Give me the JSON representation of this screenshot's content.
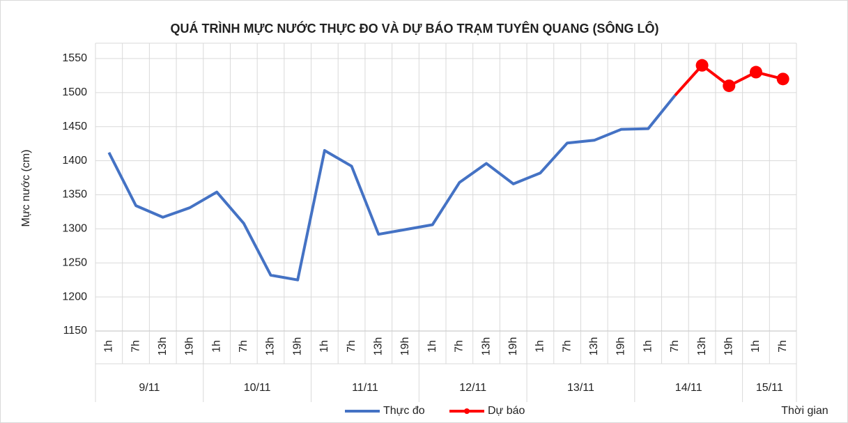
{
  "chart_data": {
    "type": "line",
    "title": "QUÁ TRÌNH MỰC NƯỚC THỰC ĐO VÀ DỰ BÁO TRẠM TUYÊN QUANG (SÔNG LÔ)",
    "y_label": "Mực nước (cm)",
    "x_label": "Thời gian",
    "groups": [
      {
        "label": "9/11",
        "categories": [
          "1h",
          "7h",
          "13h",
          "19h"
        ]
      },
      {
        "label": "10/11",
        "categories": [
          "1h",
          "7h",
          "13h",
          "19h"
        ]
      },
      {
        "label": "11/11",
        "categories": [
          "1h",
          "7h",
          "13h",
          "19h"
        ]
      },
      {
        "label": "12/11",
        "categories": [
          "1h",
          "7h",
          "13h",
          "19h"
        ]
      },
      {
        "label": "13/11",
        "categories": [
          "1h",
          "7h",
          "13h",
          "19h"
        ]
      },
      {
        "label": "14/11",
        "categories": [
          "1h",
          "7h",
          "13h",
          "19h"
        ]
      },
      {
        "label": "15/11",
        "categories": [
          "1h",
          "7h"
        ]
      }
    ],
    "series": [
      {
        "name": "Thực đo",
        "color": "#4472c4",
        "markers": false,
        "values": [
          1412,
          1334,
          1317,
          1331,
          1354,
          1308,
          1232,
          1225,
          1415,
          1392,
          1292,
          1299,
          1306,
          1368,
          1396,
          1366,
          1382,
          1426,
          1430,
          1446,
          1447,
          1496,
          null,
          null,
          null,
          null
        ]
      },
      {
        "name": "Dự báo",
        "color": "#ff0000",
        "markers": true,
        "values": [
          null,
          null,
          null,
          null,
          null,
          null,
          null,
          null,
          null,
          null,
          null,
          null,
          null,
          null,
          null,
          null,
          null,
          null,
          null,
          null,
          null,
          1496,
          1540,
          1510,
          1530,
          1520
        ]
      }
    ],
    "ylim": [
      1150,
      1550
    ],
    "yticks": [
      1150,
      1200,
      1250,
      1300,
      1350,
      1400,
      1450,
      1500,
      1550
    ],
    "grid": true,
    "legend": "bottom"
  }
}
